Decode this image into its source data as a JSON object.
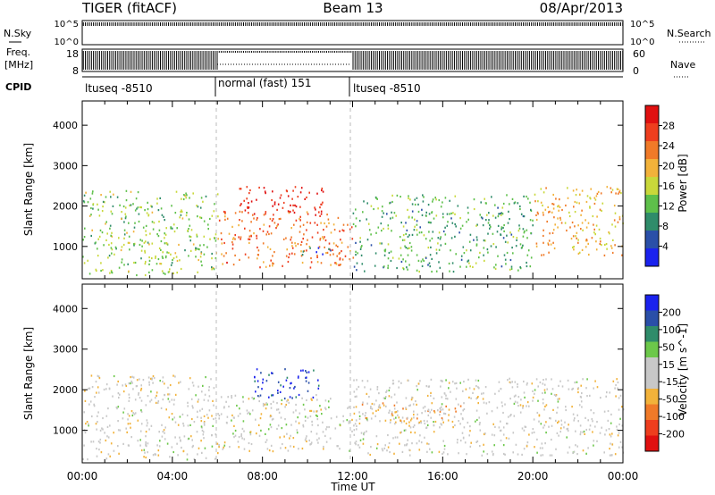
{
  "header": {
    "radar": "TIGER (fitACF)",
    "beam": "Beam 13",
    "date": "08/Apr/2013"
  },
  "top_panels": {
    "nsky_label": "N.Sky",
    "nsearch_label": "N.Search",
    "nsky_ticks": [
      "10^5",
      "10^0"
    ],
    "nsearch_ticks": [
      "10^5",
      "10^0"
    ],
    "freq_label_line1": "Freq.",
    "freq_label_line2": "[MHz]",
    "freq_ticks": [
      "18",
      "8"
    ],
    "nave_label": "Nave",
    "nave_ticks": [
      "60",
      "0"
    ],
    "cpid_label": "CPID",
    "cpid_segments": [
      {
        "label": "ltuseq -8510",
        "start_hour": 0,
        "end_hour": 6
      },
      {
        "label": "normal (fast) 151",
        "start_hour": 6,
        "end_hour": 12
      },
      {
        "label": "ltuseq -8510",
        "start_hour": 12,
        "end_hour": 24
      }
    ]
  },
  "colors": {
    "power_scale": [
      "#1a22ee",
      "#2a4fa8",
      "#2f8c6a",
      "#5ec04a",
      "#c9d83a",
      "#f2b23a",
      "#f07a28",
      "#ee3e1e",
      "#e01010"
    ],
    "velocity_scale": [
      "#1a22ee",
      "#2a4fa8",
      "#2f8c6a",
      "#6cc84a",
      "#c8c8c8",
      "#c8c8c8",
      "#f2b23a",
      "#f07a28",
      "#ee3e1e",
      "#e01010"
    ]
  },
  "chart_data": [
    {
      "type": "heatmap",
      "title": "Power",
      "ylabel": "Slant Range [km]",
      "xlabel": "",
      "x_ticks": [
        "00:00",
        "04:00",
        "08:00",
        "12:00",
        "16:00",
        "20:00",
        "00:00"
      ],
      "xlim_hours": [
        0,
        24
      ],
      "ylim": [
        200,
        4600
      ],
      "y_ticks": [
        "1000",
        "2000",
        "3000",
        "4000"
      ],
      "colorbar_label": "Power [dB]",
      "colorbar_ticks": [
        "4",
        "8",
        "12",
        "16",
        "20",
        "24",
        "28"
      ],
      "clim": [
        0,
        32
      ],
      "scatter_regions": [
        {
          "hours": [
            0,
            6
          ],
          "range_km": [
            300,
            2400
          ],
          "value": 14
        },
        {
          "hours": [
            6,
            12
          ],
          "range_km": [
            500,
            1900
          ],
          "value": 24
        },
        {
          "hours": [
            6.8,
            10.8
          ],
          "range_km": [
            1800,
            2500
          ],
          "value": 29
        },
        {
          "hours": [
            9.5,
            11.2
          ],
          "range_km": [
            800,
            1000
          ],
          "value": 6
        },
        {
          "hours": [
            12,
            20
          ],
          "range_km": [
            400,
            2300
          ],
          "value": 11
        },
        {
          "hours": [
            20,
            24
          ],
          "range_km": [
            800,
            2500
          ],
          "value": 20
        }
      ]
    },
    {
      "type": "heatmap",
      "title": "Velocity",
      "ylabel": "Slant Range [km]",
      "xlabel": "Time UT",
      "x_ticks": [
        "00:00",
        "04:00",
        "08:00",
        "12:00",
        "16:00",
        "20:00",
        "00:00"
      ],
      "xlim_hours": [
        0,
        24
      ],
      "ylim": [
        200,
        4600
      ],
      "y_ticks": [
        "1000",
        "2000",
        "3000",
        "4000"
      ],
      "colorbar_label": "Velocity [m s^-1]",
      "colorbar_ticks": [
        "200",
        "100",
        "50",
        "15",
        "-15",
        "-50",
        "-100",
        "-200"
      ],
      "clim": [
        -250,
        250
      ],
      "scatter_regions": [
        {
          "hours": [
            0,
            6
          ],
          "range_km": [
            300,
            2400
          ],
          "value": -10
        },
        {
          "hours": [
            6,
            12
          ],
          "range_km": [
            500,
            1900
          ],
          "value": 0
        },
        {
          "hours": [
            7.5,
            10.5
          ],
          "range_km": [
            1800,
            2550
          ],
          "value": 210
        },
        {
          "hours": [
            12,
            17
          ],
          "range_km": [
            1200,
            1700
          ],
          "value": -60
        },
        {
          "hours": [
            12,
            24
          ],
          "range_km": [
            400,
            2300
          ],
          "value": -5
        },
        {
          "hours": [
            9.8,
            10.4
          ],
          "range_km": [
            650,
            850
          ],
          "value": 40
        }
      ]
    }
  ]
}
